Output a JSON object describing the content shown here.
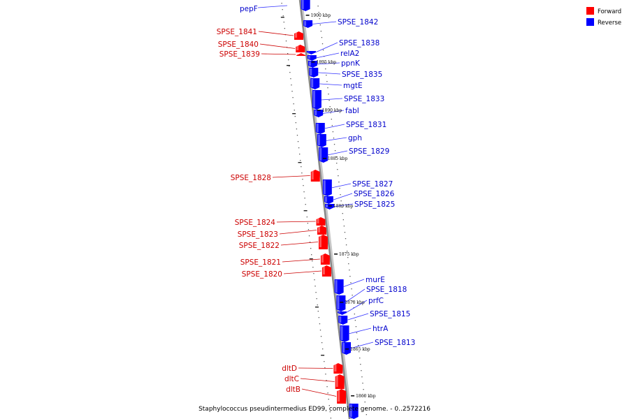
{
  "legend": {
    "items": [
      {
        "label": "Forward",
        "color": "#ff0000"
      },
      {
        "label": "Reverse",
        "color": "#0000ff"
      }
    ]
  },
  "colors": {
    "forward": "#ff0000",
    "reverse": "#0000ff",
    "forward_label": "#cc0000",
    "reverse_label": "#0000cc",
    "axis": "#888888",
    "leader": "#3333ff"
  },
  "caption": "Staphylococcus pseudintermedius ED99, complete genome. - 0..2572216",
  "ticks": [
    "1900 kbp",
    "1895 kbp",
    "1890 kbp",
    "1885 kbp",
    "1880 kbp",
    "1875 kbp",
    "1870 kbp",
    "1865 kbp",
    "1860 kbp"
  ],
  "genes_reverse": [
    "pepF",
    "SPSE_1842",
    "SPSE_1838",
    "relA2",
    "ppnK",
    "SPSE_1835",
    "mgtE",
    "SPSE_1833",
    "fabI",
    "SPSE_1831",
    "gph",
    "SPSE_1829",
    "SPSE_1827",
    "SPSE_1826",
    "SPSE_1825",
    "murE",
    "SPSE_1818",
    "prfC",
    "SPSE_1815",
    "htrA",
    "SPSE_1813"
  ],
  "genes_forward": [
    "SPSE_1841",
    "SPSE_1840",
    "SPSE_1839",
    "SPSE_1828",
    "SPSE_1824",
    "SPSE_1823",
    "SPSE_1822",
    "SPSE_1821",
    "SPSE_1820",
    "dltD",
    "dltC",
    "dltB"
  ]
}
